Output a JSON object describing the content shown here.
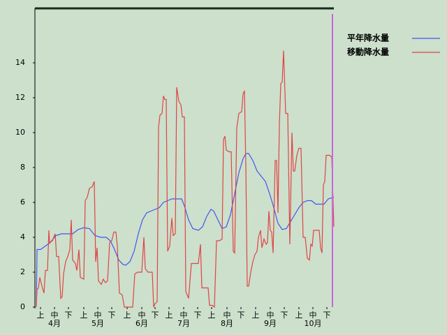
{
  "chart_data": {
    "type": "line",
    "xlim": [
      0,
      213
    ],
    "ylim": [
      0,
      17.12
    ],
    "yticks": [
      0,
      2,
      4,
      6,
      8,
      10,
      12,
      14
    ],
    "xticks": [
      {
        "value": 3,
        "label": "上"
      },
      {
        "value": 13,
        "label": "中"
      },
      {
        "value": 23,
        "label": "下"
      },
      {
        "value": 34,
        "label": "上"
      },
      {
        "value": 44,
        "label": "中"
      },
      {
        "value": 54,
        "label": "下"
      },
      {
        "value": 65,
        "label": "上"
      },
      {
        "value": 75.5,
        "label": "中"
      },
      {
        "value": 85,
        "label": "下"
      },
      {
        "value": 95,
        "label": "上"
      },
      {
        "value": 105.5,
        "label": "中"
      },
      {
        "value": 115.5,
        "label": "下"
      },
      {
        "value": 125.5,
        "label": "上"
      },
      {
        "value": 136.5,
        "label": "中"
      },
      {
        "value": 146.5,
        "label": "下"
      },
      {
        "value": 157,
        "label": "上"
      },
      {
        "value": 167.5,
        "label": "中"
      },
      {
        "value": 177.5,
        "label": "下"
      },
      {
        "value": 188,
        "label": "上"
      },
      {
        "value": 198,
        "label": "中"
      },
      {
        "value": 208,
        "label": "下"
      }
    ],
    "month_ticks": [
      {
        "value": 13,
        "label": "4月"
      },
      {
        "value": 44,
        "label": "5月"
      },
      {
        "value": 75.5,
        "label": "6月"
      },
      {
        "value": 105.5,
        "label": "7月"
      },
      {
        "value": 136.5,
        "label": "8月"
      },
      {
        "value": 167.5,
        "label": "9月"
      },
      {
        "value": 198,
        "label": "10月"
      }
    ],
    "marker_x": 212,
    "marker_color": "#cc66dd",
    "series": [
      {
        "name": "平年降水量",
        "color": "#4455ee",
        "x": [
          0,
          0.5,
          3,
          6.5,
          10,
          14,
          18,
          22,
          26,
          30,
          34,
          38,
          42,
          46,
          50,
          53,
          56,
          59,
          62,
          64,
          67,
          70,
          73,
          76,
          79,
          82,
          85,
          88,
          91,
          94,
          97,
          101,
          104,
          106,
          109,
          112,
          116,
          119,
          122,
          125,
          127,
          130,
          133,
          136,
          139,
          142,
          145,
          148,
          150,
          152,
          155,
          158,
          161,
          164,
          167,
          170,
          173,
          176,
          179,
          182,
          185,
          188,
          191,
          194,
          197,
          200,
          203,
          206,
          209,
          213
        ],
        "values": [
          0,
          3.3,
          3.3,
          3.5,
          3.7,
          4.1,
          4.2,
          4.2,
          4.2,
          4.45,
          4.55,
          4.5,
          4.1,
          4.0,
          4.0,
          3.8,
          3.3,
          2.7,
          2.45,
          2.4,
          2.6,
          3.2,
          4.2,
          5.0,
          5.4,
          5.5,
          5.6,
          5.7,
          6.0,
          6.1,
          6.2,
          6.2,
          6.2,
          5.8,
          5.0,
          4.5,
          4.4,
          4.6,
          5.2,
          5.6,
          5.5,
          5.0,
          4.5,
          4.6,
          5.3,
          6.5,
          7.7,
          8.5,
          8.8,
          8.8,
          8.4,
          7.8,
          7.5,
          7.2,
          6.5,
          5.7,
          4.8,
          4.45,
          4.5,
          4.9,
          5.3,
          5.7,
          6.0,
          6.1,
          6.1,
          5.9,
          5.9,
          5.9,
          6.2,
          6.3
        ]
      },
      {
        "name": "移動降水量",
        "color": "#e04444",
        "x": [
          0,
          0.5,
          1.5,
          2.5,
          4,
          5.5,
          6.5,
          8,
          9,
          9.5,
          11.5,
          13.5,
          14.5,
          16,
          17.5,
          18.5,
          19.5,
          21,
          22.5,
          24,
          25,
          26,
          28,
          29,
          30.5,
          31.5,
          34,
          35,
          36.5,
          38,
          40,
          41.5,
          42.5,
          43.5,
          44.5,
          46.5,
          48,
          49.5,
          51,
          52.5,
          54,
          55.5,
          57,
          58,
          59.5,
          61.5,
          63,
          66,
          69,
          70.5,
          72.5,
          75.5,
          77,
          78,
          80,
          83,
          84,
          85,
          86.5,
          87.5,
          88.5,
          90,
          91,
          92,
          93,
          94,
          95.5,
          97,
          98,
          99.5,
          100.5,
          102,
          103.5,
          104.5,
          106,
          107,
          109,
          111,
          114,
          116,
          117.5,
          118.5,
          120.5,
          123,
          124,
          126,
          127.5,
          129,
          131,
          133,
          134,
          135,
          136,
          138,
          139.5,
          141,
          142,
          143.5,
          145,
          147,
          148,
          149,
          150,
          151,
          152,
          153.5,
          155,
          156.5,
          158,
          159,
          160.5,
          161.5,
          163,
          164.5,
          165.5,
          166.5,
          167.5,
          168.5,
          169.5,
          171,
          172,
          173,
          174,
          175,
          176,
          177,
          178.5,
          180,
          181.5,
          183,
          184,
          185,
          186.5,
          188,
          189.5,
          191,
          192.5,
          194,
          195.5,
          196.5,
          197.5,
          198.5,
          200.5,
          202.5,
          203.5,
          204.5,
          205.5,
          206.5,
          207.5,
          210,
          211.5,
          213
        ],
        "values": [
          0,
          1.0,
          1.1,
          1.7,
          1.2,
          0.8,
          2.1,
          2.1,
          4.4,
          3.7,
          3.8,
          4.2,
          2.9,
          2.9,
          0.5,
          0.6,
          1.9,
          2.6,
          2.9,
          3.3,
          5.0,
          2.7,
          2.5,
          2.1,
          3.3,
          1.7,
          1.6,
          6.1,
          6.3,
          6.8,
          6.9,
          7.2,
          2.6,
          3.4,
          1.5,
          1.3,
          1.6,
          1.4,
          1.5,
          3.7,
          3.8,
          4.3,
          4.3,
          3.5,
          0.8,
          0.7,
          0,
          0,
          0,
          1.9,
          2.0,
          2.0,
          4.0,
          2.2,
          2.0,
          2.0,
          0,
          0.2,
          0.3,
          10.3,
          11.0,
          11.1,
          12.1,
          11.9,
          11.9,
          3.2,
          3.5,
          5.1,
          4.1,
          4.2,
          12.6,
          11.8,
          11.6,
          10.9,
          10.9,
          0.9,
          0.5,
          2.5,
          2.5,
          2.5,
          3.6,
          1.1,
          1.1,
          1.1,
          0.1,
          0.1,
          0,
          3.8,
          3.8,
          3.9,
          9.6,
          9.8,
          9.0,
          8.9,
          8.9,
          3.2,
          3.1,
          10.3,
          11.1,
          11.2,
          12.2,
          12.4,
          8.0,
          1.2,
          1.2,
          2.0,
          2.6,
          3.0,
          3.2,
          4.0,
          4.4,
          3.4,
          3.9,
          3.6,
          3.7,
          5.5,
          4.4,
          4.3,
          3.1,
          8.4,
          8.4,
          5.4,
          10.5,
          12.8,
          12.9,
          14.7,
          11.1,
          11.1,
          3.6,
          10.0,
          7.8,
          7.8,
          8.7,
          9.1,
          9.1,
          4.0,
          4.0,
          2.8,
          2.7,
          3.6,
          3.5,
          4.4,
          4.4,
          4.4,
          3.4,
          3.1,
          7.0,
          7.2,
          8.7,
          8.7,
          8.6,
          4.6
        ]
      }
    ]
  }
}
